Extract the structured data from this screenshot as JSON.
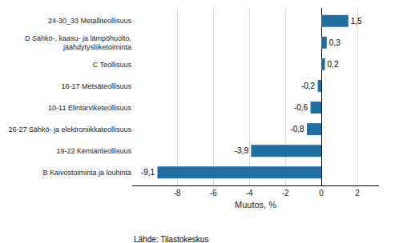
{
  "chart_data": {
    "type": "bar",
    "orientation": "horizontal",
    "categories": [
      "B Kaivostoiminta ja louhinta",
      "19-22 Kemianteollisuus",
      "26-27 Sähkö- ja elektroniikkateollisuus",
      "10-11 Elintarviketeollisuus",
      "16-17 Metsäteollisuus",
      "C Teollisuus",
      "D Sähkö-, kaasu- ja lämpöhuolto,\njäähdytysliiketoiminta",
      "24-30_33 Metalliteollisuus"
    ],
    "values": [
      -9.1,
      -3.9,
      -0.8,
      -0.6,
      -0.2,
      0.2,
      0.3,
      1.5
    ],
    "value_labels": [
      "-9,1",
      "-3,9",
      "-0,8",
      "-0,6",
      "-0,2",
      "0,2",
      "0,3",
      "1,5"
    ],
    "data_labels": true,
    "color": "#1f6fa3",
    "xlabel": "Muutos, %",
    "xlim": [
      -10.5,
      3.2
    ],
    "xticks": [
      -8,
      -6,
      -4,
      -2,
      0,
      2
    ],
    "grid": true,
    "annotations": [
      "Lähde: Tilastokeskus"
    ]
  }
}
